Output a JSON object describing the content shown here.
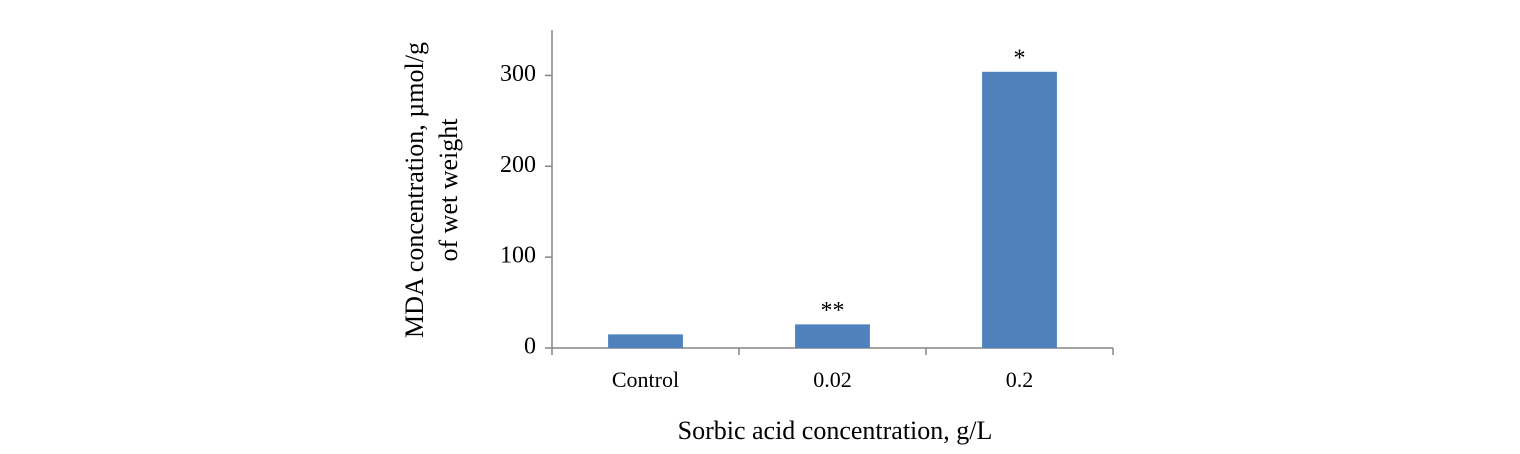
{
  "chart_data": {
    "type": "bar",
    "xlabel": "Sorbic acid concentration, g/L",
    "ylabel": [
      "MDA concentration, µmol/g",
      "of wet weight"
    ],
    "categories": [
      "Control",
      "0.02",
      "0.2"
    ],
    "values": [
      15,
      26,
      304
    ],
    "color": "#4f81bd",
    "ylim": [
      0,
      350
    ],
    "yticks": [
      0,
      100,
      200,
      300
    ],
    "grid": false,
    "annotations": [
      {
        "category": "0.02",
        "text": "**"
      },
      {
        "category": "0.2",
        "text": "*"
      }
    ]
  }
}
